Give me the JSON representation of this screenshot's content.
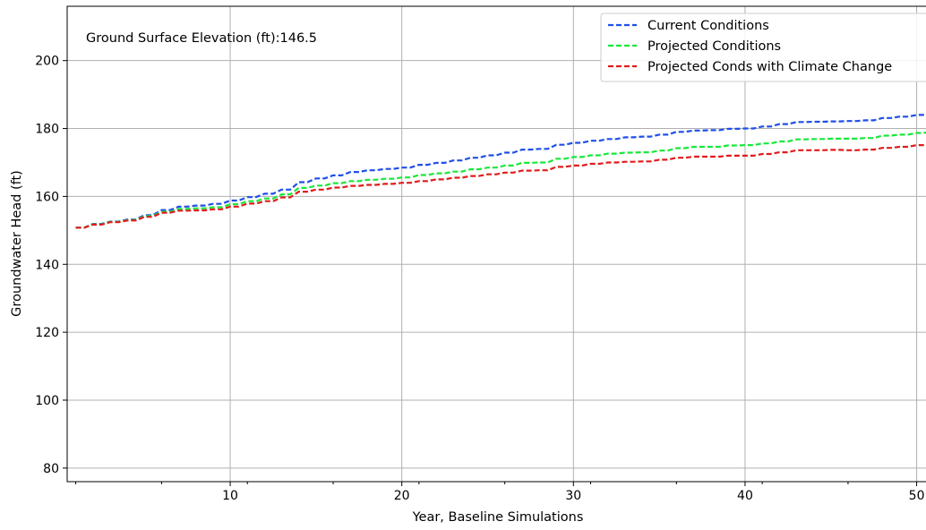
{
  "chart_data": {
    "type": "line",
    "xlabel": "Year, Baseline Simulations",
    "ylabel": "Groundwater Head (ft)",
    "annotation": "Ground Surface Elevation (ft):146.5",
    "xlim": [
      0.5,
      50.7
    ],
    "ylim": [
      76,
      216
    ],
    "xticks": [
      10,
      20,
      30,
      40,
      50
    ],
    "yticks": [
      80,
      100,
      120,
      140,
      160,
      180,
      200
    ],
    "grid": true,
    "legend_position": "top-right",
    "x": [
      1,
      2,
      3,
      4,
      5,
      6,
      7,
      8,
      9,
      10,
      11,
      12,
      13,
      14,
      15,
      16,
      17,
      18,
      19,
      20,
      21,
      22,
      23,
      24,
      25,
      26,
      27,
      28,
      29,
      30,
      31,
      32,
      33,
      34,
      35,
      36,
      37,
      38,
      39,
      40,
      41,
      42,
      43,
      44,
      45,
      46,
      47,
      48,
      49,
      50,
      50.7
    ],
    "series": [
      {
        "name": "Current Conditions",
        "color": "#1f4fe8",
        "values": [
          150.8,
          151.9,
          152.6,
          153.2,
          154.5,
          156.0,
          157.0,
          157.3,
          157.8,
          158.8,
          159.8,
          160.8,
          162.0,
          164.2,
          165.3,
          166.2,
          167.2,
          167.7,
          168.1,
          168.5,
          169.3,
          169.9,
          170.6,
          171.4,
          172.1,
          172.9,
          173.8,
          174.0,
          175.2,
          175.8,
          176.4,
          176.9,
          177.4,
          177.6,
          178.2,
          179.0,
          179.4,
          179.5,
          179.9,
          180.0,
          180.6,
          181.3,
          181.9,
          182.0,
          182.1,
          182.2,
          182.4,
          183.1,
          183.5,
          184.0,
          184.2
        ]
      },
      {
        "name": "Projected Conditions",
        "color": "#19e83a",
        "values": [
          150.8,
          151.8,
          152.5,
          153.0,
          154.2,
          155.5,
          156.3,
          156.5,
          156.8,
          157.7,
          158.6,
          159.4,
          160.6,
          162.5,
          163.2,
          163.9,
          164.5,
          164.9,
          165.2,
          165.6,
          166.3,
          166.8,
          167.3,
          168.0,
          168.5,
          169.1,
          169.9,
          170.0,
          171.1,
          171.6,
          172.1,
          172.6,
          172.9,
          173.0,
          173.5,
          174.2,
          174.6,
          174.6,
          175.0,
          175.1,
          175.6,
          176.2,
          176.8,
          176.9,
          177.0,
          177.0,
          177.2,
          177.9,
          178.2,
          178.7,
          178.9
        ]
      },
      {
        "name": "Projected Conds with Climate Change",
        "color": "#e01c1c",
        "values": [
          150.8,
          151.7,
          152.4,
          152.9,
          154.0,
          155.2,
          155.8,
          155.9,
          156.2,
          157.0,
          157.9,
          158.6,
          159.7,
          161.4,
          162.0,
          162.6,
          163.1,
          163.4,
          163.7,
          164.0,
          164.5,
          165.0,
          165.5,
          166.0,
          166.5,
          167.0,
          167.6,
          167.7,
          168.7,
          169.1,
          169.6,
          170.0,
          170.2,
          170.3,
          170.8,
          171.4,
          171.7,
          171.7,
          172.0,
          172.0,
          172.5,
          173.0,
          173.6,
          173.6,
          173.7,
          173.6,
          173.8,
          174.3,
          174.6,
          175.1,
          175.3
        ]
      }
    ]
  }
}
